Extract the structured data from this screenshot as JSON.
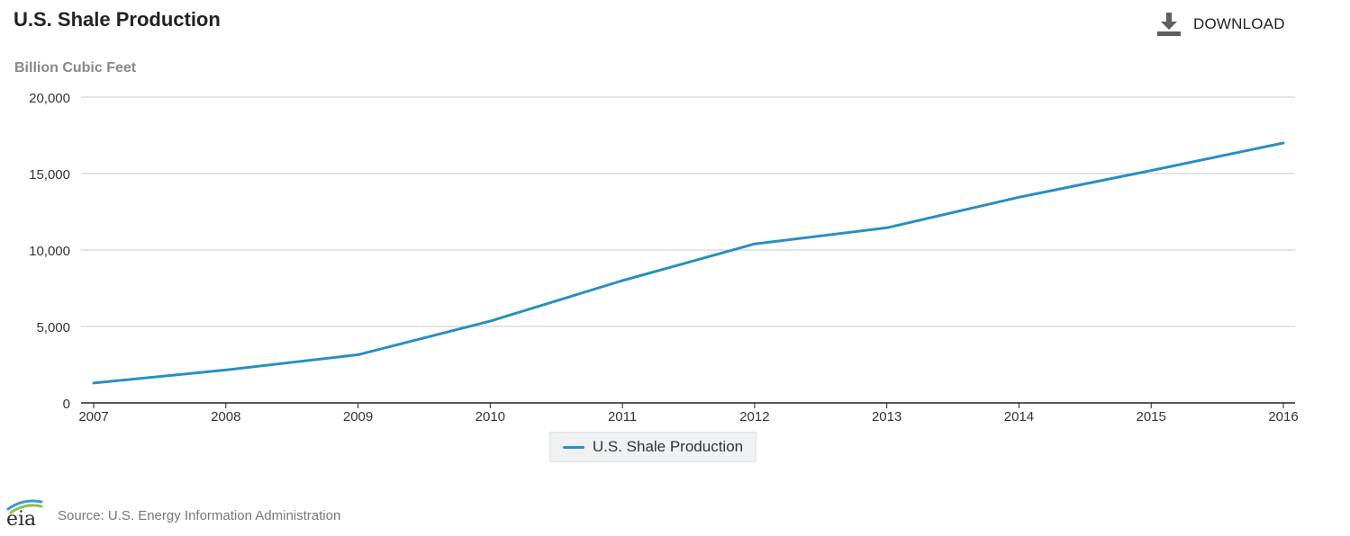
{
  "header": {
    "title": "U.S. Shale Production",
    "download_label": "DOWNLOAD",
    "download_icon": "download-icon"
  },
  "footer": {
    "logo_text": "eia",
    "source": "Source: U.S. Energy Information Administration"
  },
  "chart_data": {
    "type": "line",
    "title": "U.S. Shale Production",
    "ylabel": "Billion Cubic Feet",
    "xlabel": "",
    "x": [
      2007,
      2008,
      2009,
      2010,
      2011,
      2012,
      2013,
      2014,
      2015,
      2016
    ],
    "x_tick_labels": [
      "2007",
      "2008",
      "2009",
      "2010",
      "2011",
      "2012",
      "2013",
      "2014",
      "2015",
      "2016"
    ],
    "y_tick_labels": [
      "0",
      "5,000",
      "10,000",
      "15,000",
      "20,000"
    ],
    "y_ticks": [
      0,
      5000,
      10000,
      15000,
      20000
    ],
    "ylim": [
      0,
      20000
    ],
    "series": [
      {
        "name": "U.S. Shale Production",
        "color": "#2a8fc0",
        "values": [
          1300,
          2150,
          3150,
          5350,
          8000,
          10400,
          11450,
          13450,
          15200,
          17000
        ]
      }
    ],
    "grid": true,
    "legend": "bottom-center"
  }
}
